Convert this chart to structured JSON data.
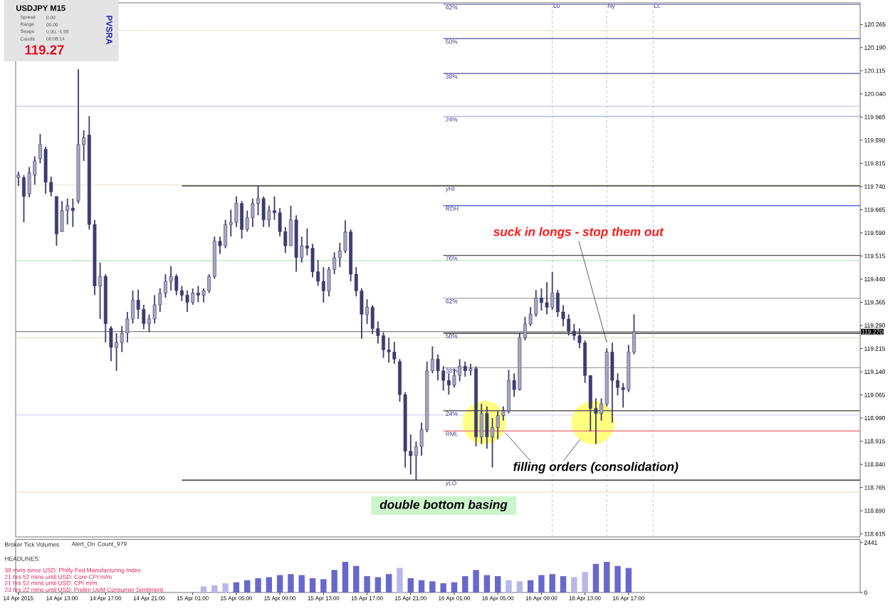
{
  "chart_data": [
    {
      "type": "candlestick",
      "xlim": [
        "2015-04-14T08:45",
        "2015-04-17T14:15"
      ],
      "ylim": [
        118.605,
        120.335
      ],
      "tick_labels": "y",
      "color": "#3c3c70",
      "yticks": [
        {
          "value": 118.615,
          "label": "118.615"
        },
        {
          "value": 118.69,
          "label": "118.690"
        },
        {
          "value": 118.765,
          "label": "118.765"
        },
        {
          "value": 118.84,
          "label": "118.840"
        },
        {
          "value": 118.915,
          "label": "118.915"
        },
        {
          "value": 118.99,
          "label": "118.990"
        },
        {
          "value": 119.065,
          "label": "119.065"
        },
        {
          "value": 119.14,
          "label": "119.140"
        },
        {
          "value": 119.215,
          "label": "119.215"
        },
        {
          "value": 119.29,
          "label": "119.290"
        },
        {
          "value": 119.365,
          "label": "119.365"
        },
        {
          "value": 119.44,
          "label": "119.440"
        },
        {
          "value": 119.515,
          "label": "119.515"
        },
        {
          "value": 119.59,
          "label": "119.590"
        },
        {
          "value": 119.665,
          "label": "119.665"
        },
        {
          "value": 119.74,
          "label": "119.740"
        },
        {
          "value": 119.815,
          "label": "119.815"
        },
        {
          "value": 119.89,
          "label": "119.890"
        },
        {
          "value": 119.965,
          "label": "119.965"
        },
        {
          "value": 120.04,
          "label": "120.040"
        },
        {
          "value": 120.115,
          "label": "120.115"
        },
        {
          "value": 120.19,
          "label": "120.190"
        },
        {
          "value": 120.265,
          "label": "120.265"
        }
      ],
      "x": [
        "2015-04-14T09:00",
        "2015-04-14T09:30",
        "2015-04-14T10:00",
        "2015-04-14T10:30",
        "2015-04-14T11:00",
        "2015-04-14T11:30",
        "2015-04-14T12:00",
        "2015-04-14T12:30",
        "2015-04-14T13:00",
        "2015-04-14T13:30",
        "2015-04-14T14:00",
        "2015-04-14T14:30",
        "2015-04-14T15:00",
        "2015-04-14T15:30",
        "2015-04-14T16:00",
        "2015-04-14T16:30",
        "2015-04-14T17:00",
        "2015-04-14T17:30",
        "2015-04-14T18:00",
        "2015-04-14T18:30",
        "2015-04-14T19:00",
        "2015-04-14T19:30",
        "2015-04-14T20:00",
        "2015-04-14T20:30",
        "2015-04-14T21:00",
        "2015-04-14T21:30",
        "2015-04-14T22:00",
        "2015-04-14T22:30",
        "2015-04-14T23:00",
        "2015-04-14T23:30",
        "2015-04-15T00:00",
        "2015-04-15T00:30",
        "2015-04-15T01:00",
        "2015-04-15T01:30",
        "2015-04-15T02:00",
        "2015-04-15T02:30",
        "2015-04-15T03:00",
        "2015-04-15T03:30",
        "2015-04-15T04:00",
        "2015-04-15T04:30",
        "2015-04-15T05:00",
        "2015-04-15T05:30",
        "2015-04-15T06:00",
        "2015-04-15T06:30",
        "2015-04-15T07:00",
        "2015-04-15T07:30",
        "2015-04-15T08:00",
        "2015-04-15T08:30",
        "2015-04-15T09:00",
        "2015-04-15T09:30",
        "2015-04-15T10:00",
        "2015-04-15T10:30",
        "2015-04-15T11:00",
        "2015-04-15T11:30",
        "2015-04-15T12:00",
        "2015-04-15T12:30",
        "2015-04-15T13:00",
        "2015-04-15T13:30",
        "2015-04-15T14:00",
        "2015-04-15T14:30",
        "2015-04-15T15:00",
        "2015-04-15T15:30",
        "2015-04-15T16:00",
        "2015-04-15T16:30",
        "2015-04-15T17:00",
        "2015-04-15T17:30",
        "2015-04-15T18:00",
        "2015-04-15T18:30",
        "2015-04-15T19:00",
        "2015-04-15T19:30",
        "2015-04-15T20:00",
        "2015-04-15T20:30",
        "2015-04-15T21:00",
        "2015-04-15T21:30",
        "2015-04-15T22:00",
        "2015-04-15T22:30",
        "2015-04-15T23:00",
        "2015-04-15T23:30",
        "2015-04-16T00:00",
        "2015-04-16T00:30",
        "2015-04-16T01:00",
        "2015-04-16T01:30",
        "2015-04-16T02:00",
        "2015-04-16T02:30",
        "2015-04-16T03:00",
        "2015-04-16T03:30",
        "2015-04-16T04:00",
        "2015-04-16T04:30",
        "2015-04-16T05:00",
        "2015-04-16T05:30",
        "2015-04-16T06:00",
        "2015-04-16T06:30",
        "2015-04-16T07:00",
        "2015-04-16T07:30",
        "2015-04-16T08:00",
        "2015-04-16T08:30",
        "2015-04-16T09:00",
        "2015-04-16T09:30",
        "2015-04-16T10:00",
        "2015-04-16T10:30",
        "2015-04-16T11:00",
        "2015-04-16T11:30",
        "2015-04-16T12:00",
        "2015-04-16T12:30",
        "2015-04-16T13:00",
        "2015-04-16T13:30",
        "2015-04-16T14:00",
        "2015-04-16T14:30",
        "2015-04-16T15:00",
        "2015-04-16T15:30",
        "2015-04-16T16:00",
        "2015-04-16T16:30",
        "2015-04-16T17:00",
        "2015-04-16T17:30"
      ],
      "ohlc": [
        [
          119.769,
          119.788,
          119.742,
          119.777
        ],
        [
          119.769,
          119.777,
          119.624,
          119.708
        ],
        [
          119.716,
          119.803,
          119.705,
          119.785
        ],
        [
          119.777,
          119.838,
          119.746,
          119.823
        ],
        [
          119.83,
          119.91,
          119.815,
          119.876
        ],
        [
          119.861,
          119.869,
          119.716,
          119.754
        ],
        [
          119.754,
          119.772,
          119.708,
          119.723
        ],
        [
          119.708,
          119.708,
          119.548,
          119.586
        ],
        [
          119.594,
          119.693,
          119.594,
          119.662
        ],
        [
          119.662,
          119.701,
          119.617,
          119.678
        ],
        [
          119.67,
          119.701,
          119.609,
          119.662
        ],
        [
          119.693,
          120.12,
          119.685,
          119.876
        ],
        [
          119.876,
          119.922,
          119.823,
          119.899
        ],
        [
          119.907,
          119.968,
          119.601,
          119.617
        ],
        [
          119.617,
          119.632,
          119.388,
          119.418
        ],
        [
          119.418,
          119.494,
          119.311,
          119.449
        ],
        [
          119.449,
          119.456,
          119.235,
          119.296
        ],
        [
          119.281,
          119.288,
          119.174,
          119.219
        ],
        [
          119.219,
          119.265,
          119.143,
          119.235
        ],
        [
          119.235,
          119.288,
          119.204,
          119.265
        ],
        [
          119.265,
          119.334,
          119.235,
          119.311
        ],
        [
          119.311,
          119.403,
          119.296,
          119.372
        ],
        [
          119.372,
          119.406,
          119.311,
          119.342
        ],
        [
          119.342,
          119.357,
          119.278,
          119.296
        ],
        [
          119.296,
          119.326,
          119.268,
          119.311
        ],
        [
          119.311,
          119.388,
          119.296,
          119.357
        ],
        [
          119.357,
          119.41,
          119.334,
          119.395
        ],
        [
          119.395,
          119.456,
          119.38,
          119.433
        ],
        [
          119.433,
          119.482,
          119.403,
          119.449
        ],
        [
          119.449,
          119.456,
          119.388,
          119.403
        ],
        [
          119.403,
          119.418,
          119.369,
          119.388
        ],
        [
          119.388,
          119.403,
          119.334,
          119.365
        ],
        [
          119.365,
          119.41,
          119.357,
          119.395
        ],
        [
          119.395,
          119.418,
          119.365,
          119.388
        ],
        [
          119.388,
          119.41,
          119.365,
          119.403
        ],
        [
          119.403,
          119.456,
          119.395,
          119.449
        ],
        [
          119.449,
          119.578,
          119.441,
          119.563
        ],
        [
          119.563,
          119.578,
          119.522,
          119.548
        ],
        [
          119.548,
          119.632,
          119.54,
          119.617
        ],
        [
          119.617,
          119.665,
          119.578,
          119.624
        ],
        [
          119.624,
          119.708,
          119.609,
          119.685
        ],
        [
          119.685,
          119.693,
          119.571,
          119.601
        ],
        [
          119.601,
          119.662,
          119.594,
          119.639
        ],
        [
          119.639,
          119.701,
          119.609,
          119.685
        ],
        [
          119.685,
          119.742,
          119.647,
          119.701
        ],
        [
          119.701,
          119.708,
          119.609,
          119.632
        ],
        [
          119.632,
          119.678,
          119.609,
          119.662
        ],
        [
          119.662,
          119.708,
          119.632,
          119.655
        ],
        [
          119.655,
          119.67,
          119.578,
          119.594
        ],
        [
          119.594,
          119.609,
          119.525,
          119.548
        ],
        [
          119.548,
          119.678,
          119.548,
          119.632
        ],
        [
          119.632,
          119.647,
          119.464,
          119.51
        ],
        [
          119.51,
          119.578,
          119.494,
          119.548
        ],
        [
          119.548,
          119.604,
          119.517,
          119.54
        ],
        [
          119.54,
          119.555,
          119.446,
          119.464
        ],
        [
          119.464,
          119.502,
          119.418,
          119.433
        ],
        [
          119.433,
          119.479,
          119.364,
          119.402
        ],
        [
          119.402,
          119.479,
          119.384,
          119.471
        ],
        [
          119.471,
          119.527,
          119.456,
          119.509
        ],
        [
          119.509,
          119.558,
          119.479,
          119.532
        ],
        [
          119.532,
          119.631,
          119.524,
          119.593
        ],
        [
          119.593,
          119.601,
          119.433,
          119.456
        ],
        [
          119.456,
          119.479,
          119.384,
          119.402
        ],
        [
          119.402,
          119.41,
          119.247,
          119.326
        ],
        [
          119.326,
          119.375,
          119.295,
          119.349
        ],
        [
          119.349,
          119.356,
          119.262,
          119.28
        ],
        [
          119.28,
          119.303,
          119.231,
          119.257
        ],
        [
          119.257,
          119.268,
          119.185,
          119.211
        ],
        [
          119.211,
          119.25,
          119.17,
          119.204
        ],
        [
          119.204,
          119.237,
          119.166,
          119.181
        ],
        [
          119.173,
          119.181,
          119.043,
          119.066
        ],
        [
          119.066,
          119.074,
          118.83,
          118.883
        ],
        [
          118.883,
          118.937,
          118.807,
          118.868
        ],
        [
          118.868,
          118.914,
          118.788,
          118.898
        ],
        [
          118.898,
          118.975,
          118.868,
          118.952
        ],
        [
          118.952,
          119.173,
          118.944,
          119.143
        ],
        [
          119.143,
          119.222,
          119.135,
          119.181
        ],
        [
          119.181,
          119.196,
          119.112,
          119.143
        ],
        [
          119.143,
          119.158,
          119.079,
          119.112
        ],
        [
          119.112,
          119.135,
          119.066,
          119.097
        ],
        [
          119.097,
          119.15,
          119.089,
          119.128
        ],
        [
          119.128,
          119.181,
          119.109,
          119.158
        ],
        [
          119.158,
          119.173,
          119.124,
          119.143
        ],
        [
          119.143,
          119.166,
          119.128,
          119.15
        ],
        [
          119.15,
          119.158,
          118.898,
          118.929
        ],
        [
          118.929,
          119.036,
          118.906,
          119.005
        ],
        [
          119.005,
          119.028,
          118.891,
          118.929
        ],
        [
          118.929,
          118.99,
          118.83,
          118.959
        ],
        [
          118.959,
          119.013,
          118.921,
          118.998
        ],
        [
          118.998,
          119.028,
          118.982,
          119.013
        ],
        [
          119.013,
          119.146,
          119.005,
          119.112
        ],
        [
          119.112,
          119.135,
          119.059,
          119.082
        ],
        [
          119.082,
          119.265,
          119.079,
          119.25
        ],
        [
          119.25,
          119.318,
          119.242,
          119.295
        ],
        [
          119.295,
          119.349,
          119.288,
          119.326
        ],
        [
          119.326,
          119.405,
          119.318,
          119.379
        ],
        [
          119.379,
          119.41,
          119.338,
          119.364
        ],
        [
          119.364,
          119.43,
          119.326,
          119.349
        ],
        [
          119.349,
          119.463,
          119.341,
          119.395
        ],
        [
          119.395,
          119.405,
          119.318,
          119.334
        ],
        [
          119.334,
          119.356,
          119.288,
          119.311
        ],
        [
          119.311,
          119.326,
          119.257,
          119.272
        ],
        [
          119.272,
          119.295,
          119.242,
          119.257
        ],
        [
          119.257,
          119.28,
          119.216,
          119.234
        ],
        [
          119.234,
          119.242,
          119.104,
          119.128
        ],
        [
          119.128,
          119.128,
          118.947,
          119.021
        ],
        [
          119.021,
          119.054,
          118.906,
          119.005
        ],
        [
          119.005,
          119.054,
          118.982,
          119.036
        ],
        [
          119.036,
          119.216,
          119.028,
          119.204
        ],
        [
          119.204,
          119.234,
          118.975,
          119.112
        ],
        [
          119.112,
          119.135,
          119.063,
          119.089
        ],
        [
          119.089,
          119.104,
          119.024,
          119.082
        ],
        [
          119.082,
          119.227,
          119.074,
          119.204
        ],
        [
          119.204,
          119.326,
          119.196,
          119.27
        ]
      ],
      "series": [
        {
          "type": "scatter",
          "color": "#ffff80",
          "marker": "circle",
          "x": [
            "2015-04-16T03:45",
            "2015-04-16T13:45"
          ],
          "values": [
            118.975,
            118.975
          ]
        },
        {
          "type": "line",
          "name": "62%",
          "color": "#7070b4",
          "x": [
            "2015-04-16T00:00",
            "2015-04-17T14:15"
          ],
          "values": [
            120.33,
            120.33
          ]
        },
        {
          "type": "line",
          "name": "50%",
          "color": "#6a6ab4",
          "x": [
            "2015-04-16T00:00",
            "2015-04-17T14:15"
          ],
          "values": [
            120.219,
            120.219
          ]
        },
        {
          "type": "line",
          "name": "38%",
          "color": "#6a6ab4",
          "x": [
            "2015-04-16T00:00",
            "2015-04-17T14:15"
          ],
          "values": [
            120.106,
            120.106
          ]
        },
        {
          "type": "line",
          "name": "24%",
          "color": "#b4b8e0",
          "x": [
            "2015-04-16T00:00",
            "2015-04-17T14:15"
          ],
          "values": [
            119.967,
            119.967
          ]
        },
        {
          "type": "line",
          "name": "yHI",
          "color": "#383838",
          "x": [
            "2015-04-15T00:00",
            "2015-04-17T14:15"
          ],
          "values": [
            119.742,
            119.742
          ]
        },
        {
          "type": "line",
          "name": "RDH",
          "color": "#5070d0",
          "x": [
            "2015-04-16T00:00",
            "2015-04-17T14:15"
          ],
          "values": [
            119.678,
            119.678
          ]
        },
        {
          "type": "line",
          "name": "76%",
          "color": "#505050",
          "x": [
            "2015-04-16T00:00",
            "2015-04-17T14:15"
          ],
          "values": [
            119.517,
            119.517
          ]
        },
        {
          "type": "line",
          "name": "62%",
          "color": "#a0a0a0",
          "x": [
            "2015-04-16T00:00",
            "2015-04-17T14:15"
          ],
          "values": [
            119.378,
            119.378
          ]
        },
        {
          "type": "line",
          "name": "50%",
          "color": "#000000",
          "x": [
            "2015-04-16T00:00",
            "2015-04-17T14:15"
          ],
          "values": [
            119.265,
            119.265
          ]
        },
        {
          "type": "line",
          "name": "38%",
          "color": "#a0a0a0",
          "x": [
            "2015-04-16T00:00",
            "2015-04-17T14:15"
          ],
          "values": [
            119.153,
            119.153
          ]
        },
        {
          "type": "line",
          "name": "24%",
          "color": "#606060",
          "x": [
            "2015-04-16T00:00",
            "2015-04-17T14:15"
          ],
          "values": [
            119.014,
            119.014
          ]
        },
        {
          "type": "line",
          "name": "RML",
          "color": "#f08080",
          "x": [
            "2015-04-16T00:00",
            "2015-04-17T14:15"
          ],
          "values": [
            118.948,
            118.948
          ]
        },
        {
          "type": "line",
          "name": "yLO",
          "color": "#383838",
          "x": [
            "2015-04-15T00:00",
            "2015-04-17T14:15"
          ],
          "values": [
            118.789,
            118.789
          ]
        }
      ],
      "ref_lines": [
        {
          "axis": "y",
          "value": 120.245,
          "color": "#e6e0c4"
        },
        {
          "axis": "y",
          "value": 120.0,
          "color": "#c8c8f0"
        },
        {
          "axis": "y",
          "value": 119.745,
          "color": "#e6e0c4"
        },
        {
          "axis": "y",
          "value": 119.5,
          "color": "#a8e0a8"
        },
        {
          "axis": "y",
          "value": 119.25,
          "color": "#e6e0c4"
        },
        {
          "axis": "y",
          "value": 119.0,
          "color": "#c8c8f0"
        },
        {
          "axis": "y",
          "value": 118.75,
          "color": "#e6e0c4"
        },
        {
          "axis": "y",
          "value": 119.27,
          "label": "119.270",
          "color": "#808080"
        },
        {
          "axis": "x",
          "value": "2015-04-16T10:00",
          "label": "Lo",
          "color": "#c8c8c8",
          "line_style": "dashed"
        },
        {
          "axis": "x",
          "value": "2015-04-16T15:00",
          "label": "Ny",
          "color": "#c8c8c8",
          "line_style": "dashed"
        },
        {
          "axis": "x",
          "value": "2015-04-16T19:15",
          "label": "Lc",
          "color": "#c8c8c8",
          "line_style": "dashed"
        }
      ],
      "annotations": [
        {
          "text": "suck in longs - stop them out",
          "x": "2015-04-16T15:00",
          "y": 119.235
        },
        {
          "text": "filling orders (consolidation)",
          "x": "2015-04-16T05:45",
          "y": 118.94
        },
        "double bottom basing"
      ]
    },
    {
      "type": "bar",
      "title": "Broker Tick Volumes",
      "annotations": [
        "Alert_On",
        "Count_979",
        "HEADLINES:",
        "38 mins since USD: Philly Fed Manufacturing Index",
        "21 hrs 52 mins until USD: Core CPI m/m",
        "21 hrs 52 mins until USD: CPI m/m",
        "23 hrs 22 mins until USD: Prelim UoM Consumer Sentiment"
      ],
      "xlim": [
        "2015-04-14T08:45",
        "2015-04-17T14:15"
      ],
      "ylim": [
        0,
        2600
      ],
      "yticks": [
        0,
        2441
      ],
      "xticks": [
        {
          "value": "2015-04-14T09:00",
          "label": "14 Apr 2015"
        },
        {
          "value": "2015-04-14T13:00",
          "label": "14 Apr 13:00"
        },
        {
          "value": "2015-04-14T17:00",
          "label": "14 Apr 17:00"
        },
        {
          "value": "2015-04-14T21:00",
          "label": "14 Apr 21:00"
        },
        {
          "value": "2015-04-15T01:00",
          "label": "15 Apr 01:00"
        },
        {
          "value": "2015-04-15T05:00",
          "label": "15 Apr 05:00"
        },
        {
          "value": "2015-04-15T09:00",
          "label": "15 Apr 09:00"
        },
        {
          "value": "2015-04-15T13:00",
          "label": "15 Apr 13:00"
        },
        {
          "value": "2015-04-15T17:00",
          "label": "15 Apr 17:00"
        },
        {
          "value": "2015-04-15T21:00",
          "label": "15 Apr 21:00"
        },
        {
          "value": "2015-04-16T01:00",
          "label": "16 Apr 01:00"
        },
        {
          "value": "2015-04-16T05:00",
          "label": "16 Apr 05:00"
        },
        {
          "value": "2015-04-16T09:00",
          "label": "16 Apr 09:00"
        },
        {
          "value": "2015-04-16T13:00",
          "label": "16 Apr 13:00"
        },
        {
          "value": "2015-04-16T17:00",
          "label": "16 Apr 17:00"
        }
      ],
      "x": [
        "2015-04-15T02:00",
        "2015-04-15T03:00",
        "2015-04-15T04:00",
        "2015-04-15T05:00",
        "2015-04-15T06:00",
        "2015-04-15T07:00",
        "2015-04-15T08:00",
        "2015-04-15T09:00",
        "2015-04-15T10:00",
        "2015-04-15T11:00",
        "2015-04-15T12:00",
        "2015-04-15T13:00",
        "2015-04-15T14:00",
        "2015-04-15T15:00",
        "2015-04-15T16:00",
        "2015-04-15T17:00",
        "2015-04-15T18:00",
        "2015-04-15T19:00",
        "2015-04-15T20:00",
        "2015-04-15T21:00",
        "2015-04-15T22:00",
        "2015-04-15T23:00",
        "2015-04-16T00:00",
        "2015-04-16T01:00",
        "2015-04-16T02:00",
        "2015-04-16T03:00",
        "2015-04-16T04:00",
        "2015-04-16T05:00",
        "2015-04-16T06:00",
        "2015-04-16T07:00",
        "2015-04-16T08:00",
        "2015-04-16T09:00",
        "2015-04-16T10:00",
        "2015-04-16T11:00",
        "2015-04-16T12:00",
        "2015-04-16T13:00",
        "2015-04-16T14:00",
        "2015-04-16T15:00",
        "2015-04-16T16:00",
        "2015-04-16T17:00"
      ],
      "values": [
        300,
        350,
        450,
        500,
        600,
        700,
        750,
        850,
        900,
        850,
        700,
        650,
        1100,
        1500,
        1300,
        800,
        750,
        900,
        1200,
        700,
        600,
        550,
        450,
        500,
        800,
        1100,
        850,
        800,
        600,
        550,
        600,
        850,
        900,
        800,
        750,
        1000,
        1400,
        1500,
        1300,
        1200
      ],
      "colors": [
        "#b8b8e8",
        "#b8b8e8",
        "#b8b8e8",
        "#6868cc",
        "#6868cc",
        "#6868cc",
        "#6868cc",
        "#6868cc",
        "#6868cc",
        "#6868cc",
        "#6868cc",
        "#6868cc",
        "#6868cc",
        "#6868cc",
        "#6868cc",
        "#6868cc",
        "#6868cc",
        "#6868cc",
        "#b8b8e8",
        "#6868cc",
        "#6868cc",
        "#6868cc",
        "#6868cc",
        "#6868cc",
        "#6868cc",
        "#6868cc",
        "#6868cc",
        "#6868cc",
        "#b8b8e8",
        "#b8b8e8",
        "#6868cc",
        "#6868cc",
        "#6868cc",
        "#6868cc",
        "#b8b8e8",
        "#b8b8e8",
        "#6868cc",
        "#6868cc",
        "#6868cc",
        "#6868cc"
      ]
    },
    {
      "type": "other",
      "title": "USDJPY M15",
      "annotations": [
        "Spread",
        "0.00",
        "Range",
        "00.00",
        "Swaps",
        "0.00, -1.95",
        "Candle",
        "00:08:14",
        "119.27",
        "PVSRA"
      ]
    }
  ]
}
